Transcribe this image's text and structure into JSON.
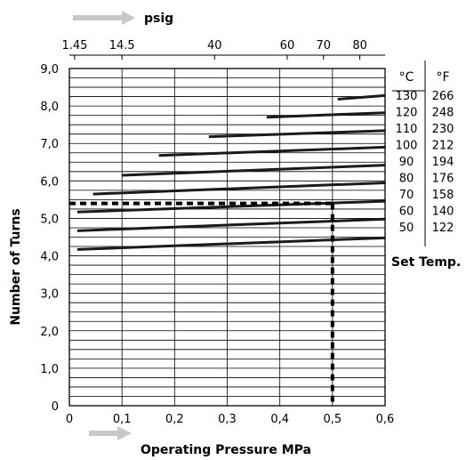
{
  "chart_data": {
    "type": "line",
    "xlabel": "Operating Pressure MPa",
    "ylabel": "Number of Turns",
    "top_axis_label": "psig",
    "xlim": [
      0,
      0.6
    ],
    "ylim": [
      0,
      9
    ],
    "x_ticks": [
      "0",
      "0,1",
      "0,2",
      "0,3",
      "0,4",
      "0,5",
      "0,6"
    ],
    "y_ticks": [
      "0",
      "1,0",
      "2,0",
      "3,0",
      "4,0",
      "5,0",
      "6,0",
      "7,0",
      "8,0",
      "9,0"
    ],
    "top_ticks": [
      "1.45",
      "14.5",
      "40",
      "60",
      "70",
      "80"
    ],
    "top_ticks_mpa": [
      0.01,
      0.1,
      0.276,
      0.414,
      0.483,
      0.552
    ],
    "legend": {
      "title": "Set Temp.",
      "col_c_header": "°C",
      "col_f_header": "°F",
      "rows": [
        {
          "c": "130",
          "f": "266"
        },
        {
          "c": "120",
          "f": "248"
        },
        {
          "c": "110",
          "f": "230"
        },
        {
          "c": "100",
          "f": "212"
        },
        {
          "c": "90",
          "f": "194"
        },
        {
          "c": "80",
          "f": "176"
        },
        {
          "c": "70",
          "f": "158"
        },
        {
          "c": "60",
          "f": "140"
        },
        {
          "c": "50",
          "f": "122"
        }
      ]
    },
    "series": [
      {
        "name": "130",
        "x": [
          0.51,
          0.6
        ],
        "y": [
          8.18,
          8.28
        ]
      },
      {
        "name": "120",
        "x": [
          0.375,
          0.6
        ],
        "y": [
          7.7,
          7.82
        ]
      },
      {
        "name": "110",
        "x": [
          0.265,
          0.6
        ],
        "y": [
          7.18,
          7.34
        ]
      },
      {
        "name": "100",
        "x": [
          0.17,
          0.6
        ],
        "y": [
          6.68,
          6.9
        ]
      },
      {
        "name": "90",
        "x": [
          0.1,
          0.6
        ],
        "y": [
          6.15,
          6.42
        ]
      },
      {
        "name": "80",
        "x": [
          0.045,
          0.6
        ],
        "y": [
          5.65,
          5.95
        ]
      },
      {
        "name": "70",
        "x": [
          0.015,
          0.6
        ],
        "y": [
          5.17,
          5.46
        ]
      },
      {
        "name": "60",
        "x": [
          0.015,
          0.6
        ],
        "y": [
          4.67,
          4.98
        ]
      },
      {
        "name": "50",
        "x": [
          0.015,
          0.6
        ],
        "y": [
          4.17,
          4.48
        ]
      }
    ],
    "example_reading": {
      "x": 0.5,
      "y": 5.4,
      "series": "70"
    }
  }
}
